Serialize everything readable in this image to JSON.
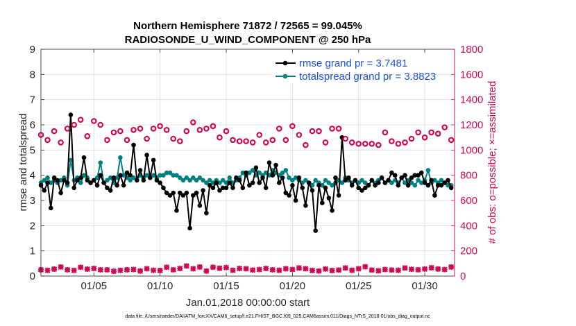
{
  "chart_data": {
    "type": "line",
    "title_line1": "Northern Hemisphere 71872 / 72565 = 99.045%",
    "title_line2": "RADIOSONDE_U_WIND_COMPONENT @ 250 hPa",
    "xlabel": "Jan.01,2018 00:00:00 start",
    "ylabel": "rmse and totalspread",
    "ylabel_right": "# of obs: o=possible; ×=assimilated",
    "footnote": "data file: /Users/raeder/DAI/ATM_forcXX/CAM6_setup/f.e21.FHIST_BGC.f09_025.CAM6assim.011/Diags_NTrS_2018-01/obs_diag_output.nc",
    "xlim": [
      1,
      32.25
    ],
    "ylim": [
      0,
      9
    ],
    "ylim_right": [
      0,
      1800
    ],
    "x_ticks": [
      5,
      10,
      15,
      20,
      25,
      30
    ],
    "x_tick_labels": [
      "01/05",
      "01/10",
      "01/15",
      "01/20",
      "01/25",
      "01/30"
    ],
    "y_ticks": [
      0,
      1,
      2,
      3,
      4,
      5,
      6,
      7,
      8,
      9
    ],
    "y_tick_labels": [
      "0",
      "1",
      "2",
      "3",
      "4",
      "5",
      "6",
      "7",
      "8",
      "9"
    ],
    "y_right_ticks": [
      0,
      200,
      400,
      600,
      800,
      1000,
      1200,
      1400,
      1600,
      1800
    ],
    "y_right_tick_labels": [
      "0",
      "200",
      "400",
      "600",
      "800",
      "1000",
      "1200",
      "1400",
      "1600",
      "1800"
    ],
    "grid": true,
    "legend_position": "top-right",
    "x": [
      1.0,
      1.25,
      1.5,
      1.75,
      2.0,
      2.25,
      2.5,
      2.75,
      3.0,
      3.25,
      3.5,
      3.75,
      4.0,
      4.25,
      4.5,
      4.75,
      5.0,
      5.25,
      5.5,
      5.75,
      6.0,
      6.25,
      6.5,
      6.75,
      7.0,
      7.25,
      7.5,
      7.75,
      8.0,
      8.25,
      8.5,
      8.75,
      9.0,
      9.25,
      9.5,
      9.75,
      10.0,
      10.25,
      10.5,
      10.75,
      11.0,
      11.25,
      11.5,
      11.75,
      12.0,
      12.25,
      12.5,
      12.75,
      13.0,
      13.25,
      13.5,
      13.75,
      14.0,
      14.25,
      14.5,
      14.75,
      15.0,
      15.25,
      15.5,
      15.75,
      16.0,
      16.25,
      16.5,
      16.75,
      17.0,
      17.25,
      17.5,
      17.75,
      18.0,
      18.25,
      18.5,
      18.75,
      19.0,
      19.25,
      19.5,
      19.75,
      20.0,
      20.25,
      20.5,
      20.75,
      21.0,
      21.25,
      21.5,
      21.75,
      22.0,
      22.25,
      22.5,
      22.75,
      23.0,
      23.25,
      23.5,
      23.75,
      24.0,
      24.25,
      24.5,
      24.75,
      25.0,
      25.25,
      25.5,
      25.75,
      26.0,
      26.25,
      26.5,
      26.75,
      27.0,
      27.25,
      27.5,
      27.75,
      28.0,
      28.25,
      28.5,
      28.75,
      29.0,
      29.25,
      29.5,
      29.75,
      30.0,
      30.25,
      30.5,
      30.75,
      31.0,
      31.25,
      31.5,
      31.75,
      32.0
    ],
    "series": [
      {
        "name": "rmse grand pr = 3.7481",
        "color": "#000000",
        "marker": "circle",
        "values": [
          3.6,
          3.4,
          3.7,
          2.7,
          3.9,
          3.8,
          3.3,
          3.8,
          3.7,
          6.4,
          3.5,
          3.8,
          3.9,
          4.7,
          3.8,
          3.7,
          3.8,
          3.6,
          4.0,
          3.7,
          3.5,
          3.4,
          3.9,
          3.6,
          4.0,
          3.6,
          4.1,
          4.0,
          5.2,
          3.8,
          4.2,
          3.8,
          4.8,
          3.9,
          4.6,
          3.8,
          3.7,
          3.5,
          3.3,
          3.2,
          3.3,
          2.6,
          3.3,
          3.2,
          3.3,
          1.9,
          3.2,
          3.3,
          2.8,
          3.4,
          2.5,
          3.6,
          3.5,
          3.7,
          3.4,
          3.5,
          3.5,
          3.7,
          3.5,
          3.9,
          3.8,
          3.5,
          4.1,
          3.6,
          3.7,
          4.3,
          3.7,
          3.9,
          3.5,
          4.5,
          4.0,
          4.4,
          3.7,
          3.9,
          3.3,
          3.2,
          3.6,
          3.0,
          3.9,
          3.5,
          2.8,
          3.7,
          3.4,
          1.8,
          3.6,
          2.9,
          3.5,
          3.1,
          2.6,
          3.9,
          3.2,
          5.5,
          3.8,
          3.9,
          3.6,
          3.8,
          3.5,
          3.4,
          3.5,
          3.6,
          3.8,
          3.6,
          3.7,
          3.9,
          3.7,
          3.8,
          4.1,
          4.0,
          3.6,
          3.9,
          4.0,
          3.6,
          3.9,
          4.0,
          4.0,
          4.1,
          3.7,
          3.6,
          3.8,
          3.2,
          3.6,
          3.6,
          3.7,
          3.8,
          3.5
        ]
      },
      {
        "name": "totalspread grand pr = 3.8823",
        "color": "#008080",
        "marker": "circle",
        "values": [
          3.7,
          3.8,
          3.9,
          3.7,
          3.8,
          3.7,
          3.8,
          3.9,
          3.6,
          4.6,
          3.8,
          3.9,
          3.7,
          4.0,
          3.9,
          3.7,
          3.8,
          3.9,
          4.5,
          3.7,
          3.8,
          3.9,
          3.7,
          3.9,
          4.7,
          4.0,
          3.9,
          3.8,
          3.9,
          3.8,
          4.0,
          3.9,
          4.0,
          3.9,
          4.0,
          3.9,
          4.0,
          4.0,
          4.1,
          4.1,
          4.0,
          4.0,
          3.9,
          3.8,
          3.9,
          3.8,
          3.9,
          3.8,
          3.9,
          3.8,
          3.7,
          3.8,
          3.7,
          3.8,
          3.7,
          3.8,
          3.7,
          3.9,
          3.7,
          3.8,
          3.9,
          4.1,
          4.0,
          4.1,
          4.2,
          4.0,
          4.1,
          4.0,
          4.1,
          4.0,
          4.2,
          4.1,
          4.0,
          4.1,
          4.2,
          3.9,
          3.8,
          3.9,
          3.8,
          3.7,
          3.8,
          3.7,
          3.6,
          3.8,
          3.7,
          3.6,
          3.8,
          3.7,
          3.6,
          3.7,
          3.8,
          3.7,
          3.9,
          3.8,
          3.7,
          3.8,
          3.7,
          3.8,
          3.7,
          3.6,
          3.8,
          3.7,
          3.8,
          3.9,
          3.7,
          3.8,
          3.7,
          3.8,
          3.7,
          3.9,
          3.7,
          3.8,
          3.7,
          3.6,
          3.8,
          3.7,
          3.8,
          4.2,
          3.7,
          3.8,
          3.7,
          3.8,
          3.7,
          3.6,
          3.6
        ]
      }
    ],
    "obs_possible": {
      "name": "possible",
      "axis": "right",
      "marker": "o",
      "color": "#cc0a54",
      "x": [
        1.0,
        1.5,
        2.0,
        2.5,
        3.0,
        3.5,
        4.0,
        4.5,
        5.0,
        5.5,
        6.0,
        6.5,
        7.0,
        7.5,
        8.0,
        8.5,
        9.0,
        9.5,
        10.0,
        10.5,
        11.0,
        11.5,
        12.0,
        12.5,
        13.0,
        13.5,
        14.0,
        14.5,
        15.0,
        15.5,
        16.0,
        16.5,
        17.0,
        17.5,
        18.0,
        18.5,
        19.0,
        19.5,
        20.0,
        20.5,
        21.0,
        21.5,
        22.0,
        22.5,
        23.0,
        23.5,
        24.0,
        24.5,
        25.0,
        25.5,
        26.0,
        26.5,
        27.0,
        27.5,
        28.0,
        28.5,
        29.0,
        29.5,
        30.0,
        30.5,
        31.0,
        31.5,
        32.0
      ],
      "values": [
        1120,
        1080,
        1150,
        1060,
        1170,
        1200,
        1240,
        1110,
        1230,
        1200,
        1080,
        1140,
        1150,
        1080,
        1160,
        1170,
        1090,
        1170,
        1190,
        1160,
        1090,
        1070,
        1150,
        1220,
        1160,
        1170,
        1190,
        1100,
        1150,
        1080,
        1070,
        1070,
        1060,
        1120,
        1060,
        1080,
        1170,
        1080,
        1190,
        1120,
        1040,
        1150,
        1150,
        1060,
        1170,
        1170,
        1090,
        1060,
        1050,
        1050,
        1050,
        1040,
        1140,
        1070,
        1050,
        1060,
        1090,
        1140,
        1100,
        1140,
        1130,
        1180,
        1080
      ]
    },
    "obs_assimilated": {
      "name": "assimilated",
      "axis": "right",
      "marker": "x",
      "color": "#cc0a54",
      "x": [
        1.0,
        1.5,
        2.0,
        2.5,
        3.0,
        3.5,
        4.0,
        4.5,
        5.0,
        5.5,
        6.0,
        6.5,
        7.0,
        7.5,
        8.0,
        8.5,
        9.0,
        9.5,
        10.0,
        10.5,
        11.0,
        11.5,
        12.0,
        12.5,
        13.0,
        13.5,
        14.0,
        14.5,
        15.0,
        15.5,
        16.0,
        16.5,
        17.0,
        17.5,
        18.0,
        18.5,
        19.0,
        19.5,
        20.0,
        20.5,
        21.0,
        21.5,
        22.0,
        22.5,
        23.0,
        23.5,
        24.0,
        24.5,
        25.0,
        25.5,
        26.0,
        26.5,
        27.0,
        27.5,
        28.0,
        28.5,
        29.0,
        29.5,
        30.0,
        30.5,
        31.0,
        31.5,
        32.0
      ],
      "values": [
        50,
        45,
        55,
        72,
        50,
        45,
        70,
        55,
        60,
        50,
        50,
        38,
        45,
        50,
        52,
        40,
        58,
        46,
        44,
        70,
        50,
        60,
        80,
        58,
        72,
        40,
        70,
        62,
        68,
        46,
        60,
        58,
        48,
        52,
        60,
        50,
        46,
        58,
        52,
        64,
        58,
        44,
        40,
        56,
        44,
        48,
        64,
        46,
        58,
        74,
        48,
        42,
        52,
        48,
        46,
        64,
        54,
        50,
        56,
        66,
        56,
        52,
        72
      ]
    }
  }
}
